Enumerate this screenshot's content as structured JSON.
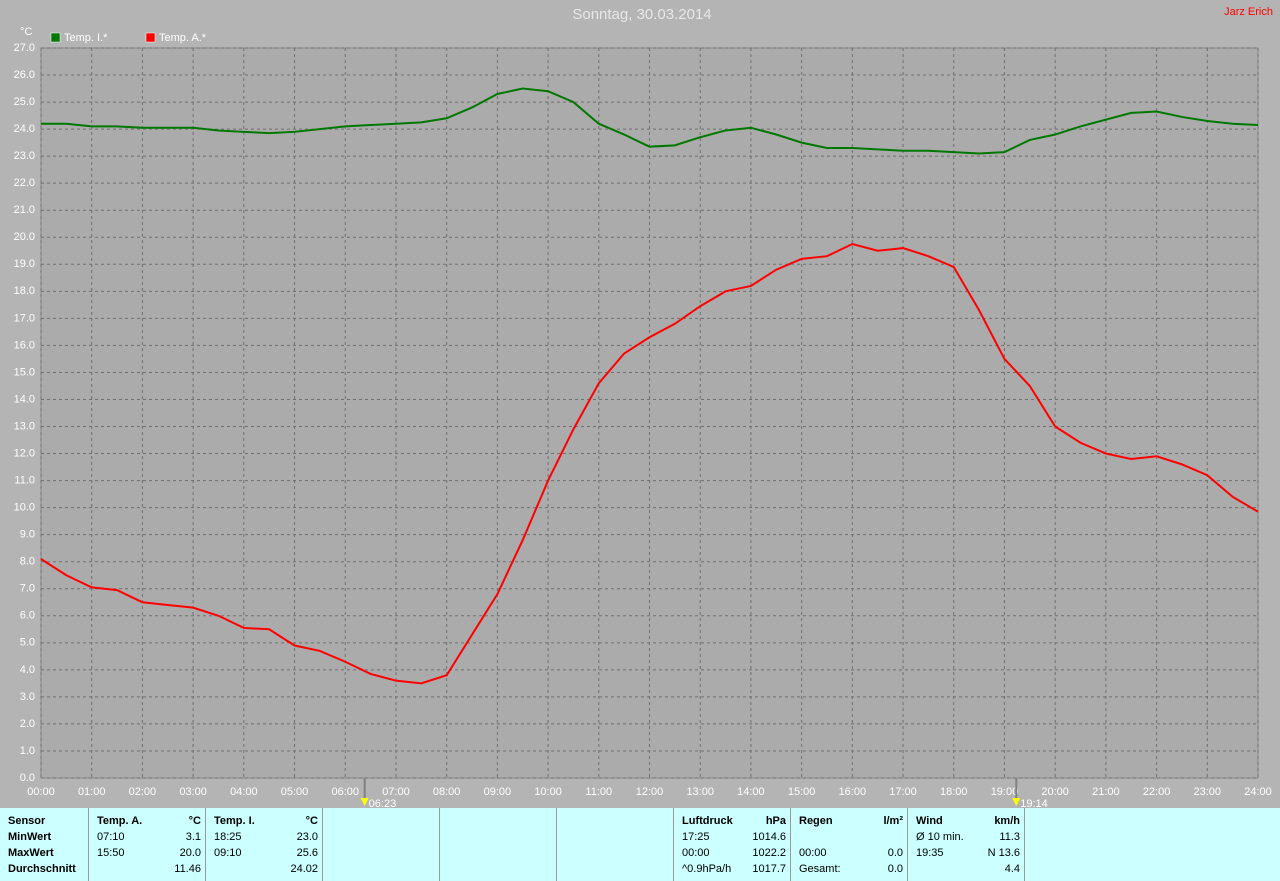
{
  "chart_data": {
    "type": "line",
    "title": "Sonntag, 30.03.2014",
    "owner": "Jarz Erich",
    "y_unit": "°C",
    "x": [
      0,
      0.5,
      1,
      1.5,
      2,
      2.5,
      3,
      3.5,
      4,
      4.5,
      5,
      5.5,
      6,
      6.5,
      7,
      7.5,
      8,
      8.5,
      9,
      9.5,
      10,
      10.5,
      11,
      11.5,
      12,
      12.5,
      13,
      13.5,
      14,
      14.5,
      15,
      15.5,
      16,
      16.5,
      17,
      17.5,
      18,
      18.5,
      19,
      19.5,
      20,
      20.5,
      21,
      21.5,
      22,
      22.5,
      23,
      23.5,
      24
    ],
    "series": [
      {
        "name": "Temp. I.*",
        "color": "#007800",
        "values": [
          24.2,
          24.2,
          24.1,
          24.1,
          24.05,
          24.05,
          24.05,
          23.95,
          23.9,
          23.85,
          23.9,
          24.0,
          24.1,
          24.15,
          24.2,
          24.25,
          24.4,
          24.8,
          25.3,
          25.5,
          25.4,
          25.0,
          24.2,
          23.8,
          23.35,
          23.4,
          23.7,
          23.95,
          24.05,
          23.8,
          23.5,
          23.3,
          23.3,
          23.25,
          23.2,
          23.2,
          23.15,
          23.1,
          23.15,
          23.6,
          23.8,
          24.1,
          24.35,
          24.6,
          24.65,
          24.45,
          24.3,
          24.2,
          24.15
        ]
      },
      {
        "name": "Temp. A.*",
        "color": "#ff0000",
        "values": [
          8.1,
          7.5,
          7.05,
          6.95,
          6.5,
          6.4,
          6.3,
          6.0,
          5.55,
          5.5,
          4.9,
          4.7,
          4.3,
          3.85,
          3.6,
          3.5,
          3.8,
          5.3,
          6.8,
          8.8,
          11.0,
          12.9,
          14.6,
          15.7,
          16.3,
          16.8,
          17.45,
          18.0,
          18.2,
          18.8,
          19.2,
          19.3,
          19.75,
          19.5,
          19.6,
          19.3,
          18.9,
          17.3,
          15.5,
          14.5,
          13.0,
          12.4,
          12.0,
          11.8,
          11.9,
          11.6,
          11.2,
          10.4,
          9.85
        ]
      }
    ],
    "xlim": [
      0,
      24
    ],
    "xticks": [
      {
        "value": 0,
        "label": "00:00"
      },
      {
        "value": 1,
        "label": "01:00"
      },
      {
        "value": 2,
        "label": "02:00"
      },
      {
        "value": 3,
        "label": "03:00"
      },
      {
        "value": 4,
        "label": "04:00"
      },
      {
        "value": 5,
        "label": "05:00"
      },
      {
        "value": 6,
        "label": "06:00"
      },
      {
        "value": 7,
        "label": "07:00"
      },
      {
        "value": 8,
        "label": "08:00"
      },
      {
        "value": 9,
        "label": "09:00"
      },
      {
        "value": 10,
        "label": "10:00"
      },
      {
        "value": 11,
        "label": "11:00"
      },
      {
        "value": 12,
        "label": "12:00"
      },
      {
        "value": 13,
        "label": "13:00"
      },
      {
        "value": 14,
        "label": "14:00"
      },
      {
        "value": 15,
        "label": "15:00"
      },
      {
        "value": 16,
        "label": "16:00"
      },
      {
        "value": 17,
        "label": "17:00"
      },
      {
        "value": 18,
        "label": "18:00"
      },
      {
        "value": 19,
        "label": "19:00"
      },
      {
        "value": 20,
        "label": "20:00"
      },
      {
        "value": 21,
        "label": "21:00"
      },
      {
        "value": 22,
        "label": "22:00"
      },
      {
        "value": 23,
        "label": "23:00"
      },
      {
        "value": 24,
        "label": "24:00"
      }
    ],
    "ylim": [
      0,
      27
    ],
    "yticks": [
      {
        "value": 0,
        "label": "0.0"
      },
      {
        "value": 1,
        "label": "1.0"
      },
      {
        "value": 2,
        "label": "2.0"
      },
      {
        "value": 3,
        "label": "3.0"
      },
      {
        "value": 4,
        "label": "4.0"
      },
      {
        "value": 5,
        "label": "5.0"
      },
      {
        "value": 6,
        "label": "6.0"
      },
      {
        "value": 7,
        "label": "7.0"
      },
      {
        "value": 8,
        "label": "8.0"
      },
      {
        "value": 9,
        "label": "9.0"
      },
      {
        "value": 10,
        "label": "10.0"
      },
      {
        "value": 11,
        "label": "11.0"
      },
      {
        "value": 12,
        "label": "12.0"
      },
      {
        "value": 13,
        "label": "13.0"
      },
      {
        "value": 14,
        "label": "14.0"
      },
      {
        "value": 15,
        "label": "15.0"
      },
      {
        "value": 16,
        "label": "16.0"
      },
      {
        "value": 17,
        "label": "17.0"
      },
      {
        "value": 18,
        "label": "18.0"
      },
      {
        "value": 19,
        "label": "19.0"
      },
      {
        "value": 20,
        "label": "20.0"
      },
      {
        "value": 21,
        "label": "21.0"
      },
      {
        "value": 22,
        "label": "22.0"
      },
      {
        "value": 23,
        "label": "23.0"
      },
      {
        "value": 24,
        "label": "24.0"
      },
      {
        "value": 25,
        "label": "25.0"
      },
      {
        "value": 26,
        "label": "26.0"
      },
      {
        "value": 27,
        "label": "27.0"
      }
    ],
    "markers": [
      {
        "value": 6.383,
        "label": "06:23",
        "color": "#ffff00"
      },
      {
        "value": 19.233,
        "label": "19:14",
        "color": "#ffff00"
      }
    ],
    "grid": true
  },
  "stats": {
    "columns": [
      {
        "header": "Sensor",
        "rows": [
          [
            "MinWert",
            null
          ],
          [
            "MaxWert",
            null
          ],
          [
            "Durchschnitt",
            null
          ]
        ]
      },
      {
        "header": "Temp. A.",
        "unit": "°C",
        "rows": [
          [
            "07:10",
            "3.1"
          ],
          [
            "15:50",
            "20.0"
          ],
          [
            null,
            "11.46"
          ]
        ]
      },
      {
        "header": "Temp. I.",
        "unit": "°C",
        "rows": [
          [
            "18:25",
            "23.0"
          ],
          [
            "09:10",
            "25.6"
          ],
          [
            null,
            "24.02"
          ]
        ]
      },
      {
        "rows": []
      },
      {
        "rows": []
      },
      {
        "rows": []
      },
      {
        "header": "Luftdruck",
        "unit": "hPa",
        "rows": [
          [
            "17:25",
            "1014.6"
          ],
          [
            "00:00",
            "1022.2"
          ],
          [
            "^0.9hPa/h",
            "1017.7"
          ]
        ]
      },
      {
        "header": "Regen",
        "unit": "l/m²",
        "rows": [
          [
            null,
            null
          ],
          [
            "00:00",
            "0.0"
          ],
          [
            "Gesamt:",
            "0.0"
          ]
        ]
      },
      {
        "header": "Wind",
        "unit": "km/h",
        "rows": [
          [
            "Ø 10 min.",
            "11.3"
          ],
          [
            "19:35",
            "N 13.6"
          ],
          [
            null,
            "4.4"
          ]
        ]
      }
    ]
  }
}
